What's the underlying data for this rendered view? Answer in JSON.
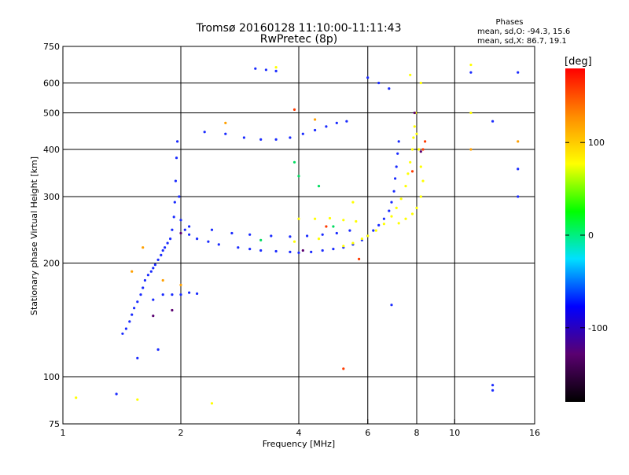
{
  "chart_data": {
    "type": "scatter",
    "title": "Tromsø 20160128 11:10:00-11:11:43",
    "subtitle": "RwPretec (8p)",
    "xlabel": "Frequency [MHz]",
    "ylabel": "Stationary phase Virtual Height [km]",
    "x_scale": "log",
    "y_scale": "log",
    "xlim": [
      1,
      16
    ],
    "ylim": [
      75,
      750
    ],
    "x_ticks": [
      1,
      2,
      4,
      6,
      8,
      10,
      16
    ],
    "y_ticks": [
      75,
      100,
      200,
      300,
      400,
      500,
      600,
      750
    ],
    "x_gridlines": [
      2,
      4,
      6,
      8,
      10
    ],
    "y_gridlines": [
      100,
      200,
      300,
      400,
      500,
      600
    ],
    "grid": true,
    "phase_stats": {
      "heading": "Phases",
      "line_o": "mean, sd,O: -94.3, 15.6",
      "line_x": "mean, sd,X:  86.7, 19.1"
    },
    "colorbar": {
      "label": "[deg]",
      "range": [
        -180,
        180
      ],
      "ticks": [
        100,
        0,
        -100
      ],
      "stops": [
        "#000000",
        "#5a0070",
        "#0000ff",
        "#00e0ff",
        "#00ff00",
        "#ffff00",
        "#ff8c00",
        "#ff0000"
      ]
    },
    "series": [
      {
        "mode": "O",
        "phase_deg": -94,
        "color": "#1a2bff",
        "points": [
          [
            1.42,
            130
          ],
          [
            1.45,
            134
          ],
          [
            1.48,
            140
          ],
          [
            1.5,
            146
          ],
          [
            1.52,
            152
          ],
          [
            1.55,
            158
          ],
          [
            1.58,
            165
          ],
          [
            1.6,
            172
          ],
          [
            1.62,
            180
          ],
          [
            1.65,
            186
          ],
          [
            1.68,
            190
          ],
          [
            1.7,
            194
          ],
          [
            1.72,
            198
          ],
          [
            1.75,
            204
          ],
          [
            1.78,
            210
          ],
          [
            1.8,
            216
          ],
          [
            1.82,
            220
          ],
          [
            1.85,
            226
          ],
          [
            1.88,
            232
          ],
          [
            1.9,
            245
          ],
          [
            1.92,
            265
          ],
          [
            1.93,
            290
          ],
          [
            1.94,
            330
          ],
          [
            1.95,
            380
          ],
          [
            1.96,
            420
          ],
          [
            1.98,
            300
          ],
          [
            2.0,
            260
          ],
          [
            2.05,
            245
          ],
          [
            2.1,
            238
          ],
          [
            2.2,
            232
          ],
          [
            2.35,
            228
          ],
          [
            2.5,
            224
          ],
          [
            2.8,
            220
          ],
          [
            3.0,
            218
          ],
          [
            3.2,
            216
          ],
          [
            3.5,
            215
          ],
          [
            3.8,
            214
          ],
          [
            4.0,
            213
          ],
          [
            4.3,
            214
          ],
          [
            4.6,
            216
          ],
          [
            4.9,
            218
          ],
          [
            5.2,
            220
          ],
          [
            5.5,
            224
          ],
          [
            5.8,
            230
          ],
          [
            6.0,
            236
          ],
          [
            6.2,
            244
          ],
          [
            6.4,
            252
          ],
          [
            6.6,
            262
          ],
          [
            6.8,
            275
          ],
          [
            6.9,
            290
          ],
          [
            7.0,
            310
          ],
          [
            7.05,
            335
          ],
          [
            7.1,
            360
          ],
          [
            7.15,
            390
          ],
          [
            7.2,
            420
          ],
          [
            2.1,
            250
          ],
          [
            2.4,
            245
          ],
          [
            2.7,
            240
          ],
          [
            3.0,
            238
          ],
          [
            3.4,
            236
          ],
          [
            3.8,
            235
          ],
          [
            4.2,
            236
          ],
          [
            4.6,
            238
          ],
          [
            5.0,
            240
          ],
          [
            5.4,
            244
          ],
          [
            2.3,
            445
          ],
          [
            2.6,
            440
          ],
          [
            2.9,
            430
          ],
          [
            3.2,
            425
          ],
          [
            3.5,
            425
          ],
          [
            3.8,
            430
          ],
          [
            4.1,
            440
          ],
          [
            4.4,
            450
          ],
          [
            4.7,
            460
          ],
          [
            5.0,
            470
          ],
          [
            5.3,
            475
          ],
          [
            3.1,
            655
          ],
          [
            3.3,
            650
          ],
          [
            3.5,
            645
          ],
          [
            6.0,
            620
          ],
          [
            6.4,
            600
          ],
          [
            6.8,
            580
          ],
          [
            1.7,
            160
          ],
          [
            1.8,
            165
          ],
          [
            1.9,
            165
          ],
          [
            2.0,
            165
          ],
          [
            2.1,
            167
          ],
          [
            2.2,
            166
          ],
          [
            1.37,
            90
          ],
          [
            1.55,
            112
          ],
          [
            1.75,
            118
          ],
          [
            11.0,
            640
          ],
          [
            12.5,
            475
          ],
          [
            14.5,
            640
          ],
          [
            14.5,
            355
          ],
          [
            14.5,
            300
          ],
          [
            12.5,
            95
          ],
          [
            12.5,
            92
          ],
          [
            6.9,
            155
          ]
        ]
      },
      {
        "mode": "X",
        "phase_deg": 87,
        "color": "#ffff00",
        "points": [
          [
            5.2,
            222
          ],
          [
            5.5,
            226
          ],
          [
            5.8,
            232
          ],
          [
            6.0,
            236
          ],
          [
            6.3,
            244
          ],
          [
            6.6,
            254
          ],
          [
            6.9,
            266
          ],
          [
            7.1,
            280
          ],
          [
            7.3,
            296
          ],
          [
            7.5,
            320
          ],
          [
            7.6,
            345
          ],
          [
            7.7,
            370
          ],
          [
            7.8,
            400
          ],
          [
            7.85,
            430
          ],
          [
            7.9,
            460
          ],
          [
            7.95,
            500
          ],
          [
            8.0,
            440
          ],
          [
            8.1,
            400
          ],
          [
            8.2,
            360
          ],
          [
            8.3,
            330
          ],
          [
            8.2,
            300
          ],
          [
            8.0,
            280
          ],
          [
            7.8,
            270
          ],
          [
            7.5,
            262
          ],
          [
            7.2,
            255
          ],
          [
            4.0,
            262
          ],
          [
            4.4,
            262
          ],
          [
            4.8,
            263
          ],
          [
            5.2,
            260
          ],
          [
            5.6,
            258
          ],
          [
            3.9,
            228
          ],
          [
            4.5,
            232
          ],
          [
            7.7,
            630
          ],
          [
            8.2,
            600
          ],
          [
            11.0,
            670
          ],
          [
            11.0,
            500
          ],
          [
            1.08,
            88
          ],
          [
            1.55,
            87
          ],
          [
            2.4,
            85
          ],
          [
            3.5,
            660
          ],
          [
            5.5,
            290
          ]
        ]
      },
      {
        "mode": "scatter",
        "phase_deg": 30,
        "color": "#00dd60",
        "points": [
          [
            3.9,
            370
          ],
          [
            4.0,
            340
          ],
          [
            4.5,
            320
          ],
          [
            4.9,
            250
          ],
          [
            3.2,
            230
          ]
        ]
      },
      {
        "mode": "scatter",
        "phase_deg": 160,
        "color": "#ff3a00",
        "points": [
          [
            3.9,
            510
          ],
          [
            5.7,
            205
          ],
          [
            5.2,
            105
          ],
          [
            8.3,
            400
          ],
          [
            8.4,
            420
          ],
          [
            4.7,
            250
          ],
          [
            7.8,
            350
          ]
        ]
      },
      {
        "mode": "scatter",
        "phase_deg": 130,
        "color": "#ffa000",
        "points": [
          [
            1.6,
            220
          ],
          [
            1.5,
            190
          ],
          [
            1.8,
            180
          ],
          [
            2.0,
            175
          ],
          [
            2.6,
            470
          ],
          [
            14.5,
            420
          ],
          [
            11.0,
            400
          ],
          [
            4.4,
            480
          ]
        ]
      },
      {
        "mode": "scatter",
        "phase_deg": -150,
        "color": "#5a0070",
        "points": [
          [
            1.9,
            150
          ],
          [
            1.7,
            145
          ],
          [
            4.1,
            216
          ],
          [
            7.9,
            500
          ],
          [
            8.2,
            395
          ],
          [
            2.0,
            240
          ]
        ]
      }
    ]
  }
}
